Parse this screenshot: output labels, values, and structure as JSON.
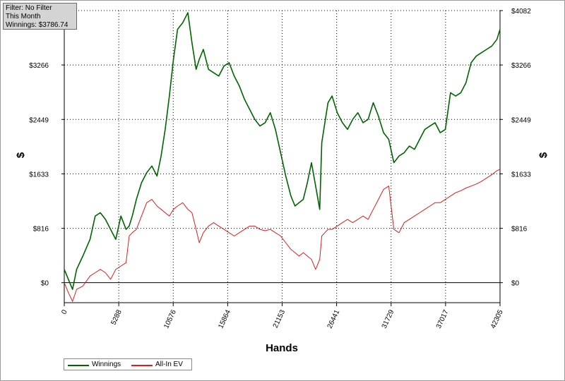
{
  "info": {
    "filter": "Filter: No Filter",
    "period": "This Month",
    "winnings": "Winnings: $3786.74"
  },
  "chart_data": {
    "type": "line",
    "xlabel": "Hands",
    "ylabel": "$",
    "xlim": [
      0,
      42305
    ],
    "ylim": [
      -300,
      4082
    ],
    "grid": true,
    "legend_position": "bottom-left",
    "x_ticks": [
      "0",
      "5288",
      "10576",
      "15864",
      "21153",
      "26441",
      "31729",
      "37017",
      "42305"
    ],
    "x_tick_values": [
      0,
      5288,
      10576,
      15864,
      21153,
      26441,
      31729,
      37017,
      42305
    ],
    "y_ticks": [
      "$0",
      "$816",
      "$1633",
      "$2449",
      "$3266",
      "$4082"
    ],
    "y_tick_values": [
      0,
      816,
      1633,
      2449,
      3266,
      4082
    ],
    "series": [
      {
        "name": "Winnings",
        "color": "#006400",
        "x": [
          0,
          400,
          800,
          1200,
          1800,
          2500,
          3000,
          3500,
          4000,
          4500,
          5000,
          5500,
          6000,
          6300,
          6600,
          7000,
          7500,
          8000,
          8500,
          9000,
          9400,
          9800,
          10200,
          10600,
          11000,
          11500,
          12000,
          12400,
          12800,
          13100,
          13500,
          14000,
          14500,
          15000,
          15500,
          16000,
          16500,
          17000,
          17500,
          18000,
          18500,
          19000,
          19500,
          20000,
          20500,
          21000,
          21500,
          22000,
          22400,
          22800,
          23200,
          23600,
          24000,
          24400,
          24800,
          25000,
          25300,
          25600,
          26000,
          26500,
          27000,
          27500,
          28000,
          28500,
          29000,
          29500,
          30000,
          30500,
          31000,
          31500,
          32000,
          32500,
          33000,
          33500,
          34000,
          34500,
          35000,
          35500,
          36000,
          36500,
          37000,
          37500,
          38000,
          38500,
          39000,
          39500,
          40000,
          40500,
          41000,
          41500,
          42000,
          42305
        ],
        "values": [
          200,
          50,
          -100,
          200,
          400,
          650,
          1000,
          1050,
          950,
          800,
          650,
          1000,
          800,
          850,
          1000,
          1250,
          1500,
          1650,
          1750,
          1600,
          1900,
          2300,
          2800,
          3350,
          3800,
          3900,
          4050,
          3600,
          3200,
          3350,
          3500,
          3200,
          3150,
          3100,
          3250,
          3300,
          3100,
          2950,
          2750,
          2600,
          2450,
          2350,
          2400,
          2550,
          2300,
          1950,
          1600,
          1300,
          1150,
          1200,
          1250,
          1500,
          1800,
          1450,
          1100,
          2100,
          2400,
          2700,
          2800,
          2550,
          2400,
          2300,
          2450,
          2550,
          2400,
          2450,
          2700,
          2500,
          2250,
          2150,
          1800,
          1900,
          1950,
          2050,
          2000,
          2150,
          2300,
          2350,
          2400,
          2250,
          2300,
          2850,
          2800,
          2850,
          3000,
          3300,
          3400,
          3450,
          3500,
          3550,
          3650,
          3800
        ]
      },
      {
        "name": "All-In EV",
        "color": "#d42020",
        "x": [
          0,
          400,
          800,
          1200,
          1800,
          2500,
          3000,
          3500,
          4000,
          4500,
          5000,
          5500,
          6000,
          6300,
          6600,
          7000,
          7500,
          8000,
          8500,
          9000,
          9400,
          9800,
          10200,
          10600,
          11000,
          11500,
          12000,
          12400,
          12800,
          13100,
          13500,
          14000,
          14500,
          15000,
          15500,
          16000,
          16500,
          17000,
          17500,
          18000,
          18500,
          19000,
          19500,
          20000,
          20500,
          21000,
          21500,
          22000,
          22400,
          22800,
          23200,
          23600,
          24000,
          24400,
          24800,
          25000,
          25300,
          25600,
          26000,
          26500,
          27000,
          27500,
          28000,
          28500,
          29000,
          29500,
          30000,
          30500,
          31000,
          31500,
          32000,
          32500,
          33000,
          33500,
          34000,
          34500,
          35000,
          35500,
          36000,
          36500,
          37000,
          37500,
          38000,
          38500,
          39000,
          39500,
          40000,
          40500,
          41000,
          41500,
          42000,
          42305
        ],
        "values": [
          0,
          -150,
          -280,
          -100,
          -50,
          100,
          150,
          200,
          150,
          50,
          200,
          250,
          300,
          700,
          750,
          800,
          1000,
          1200,
          1250,
          1150,
          1100,
          1050,
          1000,
          1100,
          1150,
          1200,
          1100,
          1050,
          800,
          600,
          750,
          850,
          900,
          850,
          800,
          750,
          700,
          750,
          800,
          850,
          850,
          800,
          780,
          800,
          750,
          700,
          600,
          500,
          450,
          400,
          450,
          400,
          350,
          200,
          350,
          700,
          750,
          800,
          800,
          850,
          900,
          950,
          900,
          950,
          1000,
          950,
          1100,
          1250,
          1400,
          1450,
          800,
          750,
          900,
          950,
          1000,
          1050,
          1100,
          1150,
          1200,
          1200,
          1250,
          1300,
          1350,
          1380,
          1420,
          1450,
          1480,
          1520,
          1570,
          1620,
          1680,
          1700
        ]
      }
    ]
  }
}
